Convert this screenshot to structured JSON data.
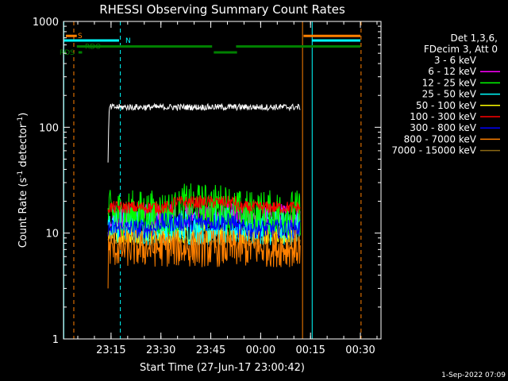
{
  "chart_data": {
    "type": "line",
    "title": "RHESSI Observing Summary Count Rates",
    "xlabel": "Start Time (27-Jun-17 23:00:42)",
    "ylabel_main": "Count Rate (s",
    "ylabel_sup1": "-1",
    "ylabel_mid": " detector",
    "ylabel_sup2": "-1",
    "ylabel_end": ")",
    "yscale": "log",
    "ylim": [
      1,
      1000
    ],
    "xlim_minutes": [
      0,
      95.5
    ],
    "y_ticks": [
      {
        "value": 1,
        "label": "1"
      },
      {
        "value": 10,
        "label": "10"
      },
      {
        "value": 100,
        "label": "100"
      },
      {
        "value": 1000,
        "label": "1000"
      }
    ],
    "x_ticks": [
      {
        "minutes": 14.3,
        "label": "23:15"
      },
      {
        "minutes": 29.3,
        "label": "23:30"
      },
      {
        "minutes": 44.3,
        "label": "23:45"
      },
      {
        "minutes": 59.3,
        "label": "00:00"
      },
      {
        "minutes": 74.3,
        "label": "00:15"
      },
      {
        "minutes": 89.3,
        "label": "00:30"
      }
    ],
    "legend_header": [
      "Det 1,3,6,",
      "FDecim 3, Att 0"
    ],
    "legend_placement": "right",
    "series": [
      {
        "name": "3 - 6 keV",
        "color": "#000000",
        "level": 155,
        "noise": 0.03,
        "start": 13.4,
        "end": 71.2,
        "spike_from": 50
      },
      {
        "name": "6 - 12 keV",
        "color": "#ff00ff",
        "level": 14.5,
        "noise": 0.12,
        "start": 13.4,
        "end": 71.2
      },
      {
        "name": "12 - 25 keV",
        "color": "#00ff00",
        "level": 15.5,
        "noise": 0.22,
        "start": 13.4,
        "end": 71.2
      },
      {
        "name": "25 - 50 keV",
        "color": "#00ffff",
        "level": 11.5,
        "noise": 0.18,
        "start": 13.4,
        "end": 71.2
      },
      {
        "name": "50 - 100 keV",
        "color": "#ffff00",
        "level": 10,
        "noise": 0.1,
        "start": 13.4,
        "end": 71.2
      },
      {
        "name": "100 - 300 keV",
        "color": "#ff0000",
        "level": 17.5,
        "noise": 0.06,
        "start": 13.4,
        "end": 71.2
      },
      {
        "name": "300 - 800 keV",
        "color": "#0000ff",
        "level": 11,
        "noise": 0.09,
        "start": 13.4,
        "end": 71.2
      },
      {
        "name": "800 - 7000 keV",
        "color": "#ff8000",
        "level": 7.2,
        "noise": 0.18,
        "start": 13.4,
        "end": 71.2
      },
      {
        "name": "7000 - 15000 keV",
        "color": "#8b6914",
        "level": 8.5,
        "noise": 0.05,
        "start": 13.4,
        "end": 71.2
      }
    ],
    "bumps": [
      {
        "series": "100 - 300 keV",
        "from": 33,
        "to": 52,
        "factor": 1.12
      },
      {
        "series": "12 - 25 keV",
        "from": 35,
        "to": 50,
        "factor": 1.15
      },
      {
        "series": "300 - 800 keV",
        "from": 28,
        "to": 52,
        "factor": 1.15
      }
    ],
    "flag_lines": [
      {
        "label": "S",
        "color": "#ff8000",
        "segments": [
          [
            0.7,
            4.0
          ],
          [
            72.2,
            89.3
          ]
        ],
        "y": 730
      },
      {
        "label": "N",
        "color": "#00ffff",
        "segments": [
          [
            0,
            16.7
          ],
          [
            74.7,
            89.3
          ]
        ],
        "y": 660
      },
      {
        "label": "RDO",
        "color": "#008000",
        "segments": [
          [
            4.0,
            44.7
          ],
          [
            51.9,
            89.3
          ]
        ],
        "y": 580
      },
      {
        "label": "RDS",
        "color": "#008000",
        "segments": [
          [
            0.2,
            0.2
          ],
          [
            4.5,
            5.6
          ],
          [
            45.2,
            52.2
          ]
        ],
        "y": 510
      }
    ],
    "vertical_lines": [
      {
        "minutes": 0.1,
        "color": "#00ffff",
        "style": "solid"
      },
      {
        "minutes": 3.1,
        "color": "#ff8000",
        "style": "dashed"
      },
      {
        "minutes": 17.1,
        "color": "#00ffff",
        "style": "dashed"
      },
      {
        "minutes": 71.9,
        "color": "#ff8000",
        "style": "solid"
      },
      {
        "minutes": 74.8,
        "color": "#00ffff",
        "style": "solid"
      },
      {
        "minutes": 89.5,
        "color": "#ff8000",
        "style": "dashed"
      }
    ],
    "footer_date": "1-Sep-2022 07:09"
  }
}
